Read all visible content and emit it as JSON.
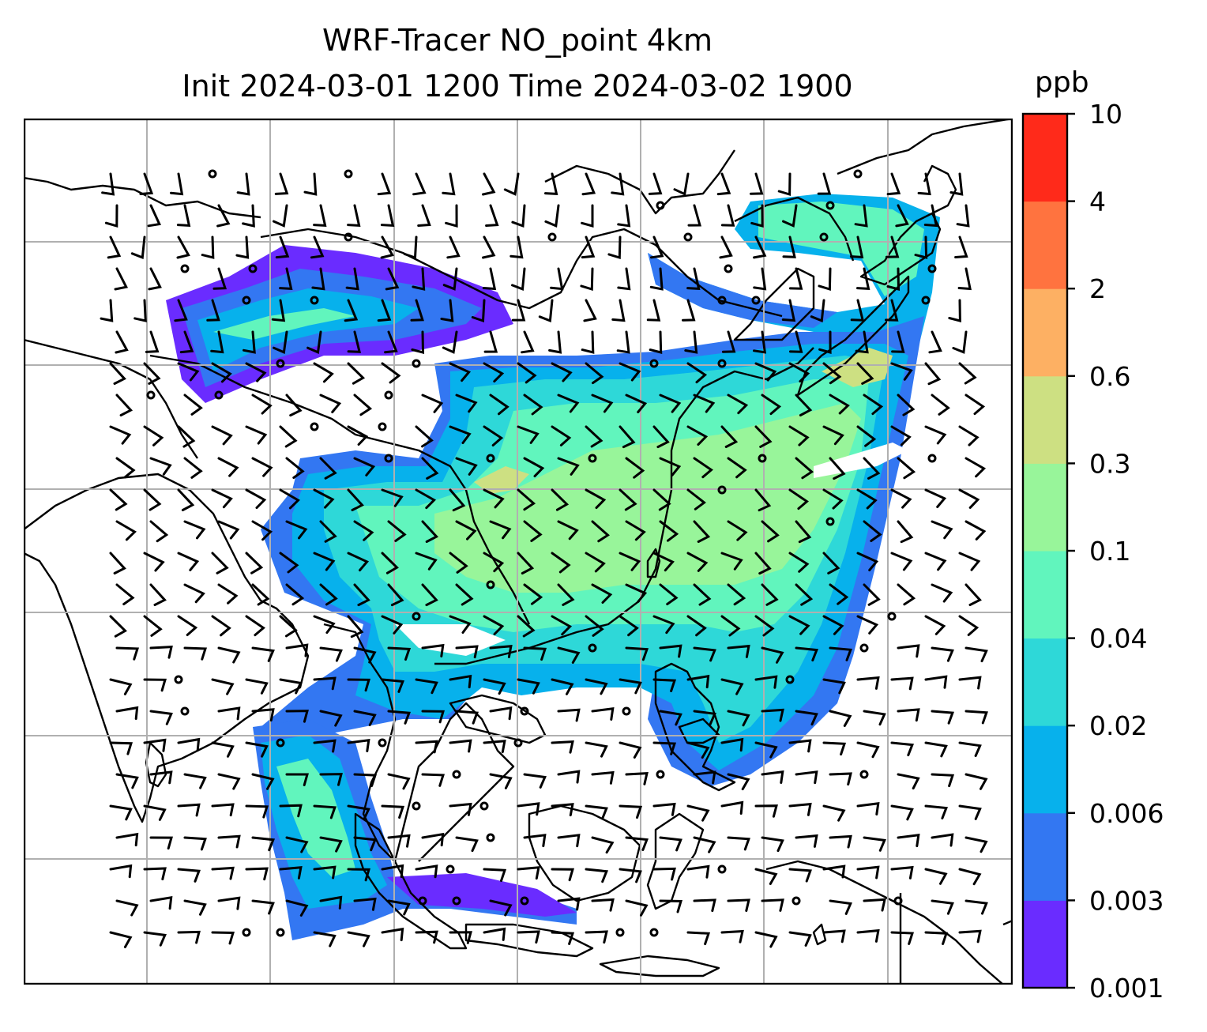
{
  "title": {
    "line1": "WRF-Tracer NO_point 4km",
    "line2": "Init 2024-03-01 1200 Time 2024-03-02 1900"
  },
  "colorbar": {
    "unit": "ppb",
    "ticks": [
      "0.001",
      "0.003",
      "0.006",
      "0.02",
      "0.04",
      "0.1",
      "0.3",
      "0.6",
      "2",
      "4",
      "10"
    ],
    "colors": [
      "#6a2cff",
      "#3377f2",
      "#07b1ec",
      "#2ed8d8",
      "#61f5bd",
      "#98f59a",
      "#cde082",
      "#fdb063",
      "#ff733f",
      "#ff2a1a"
    ]
  },
  "map": {
    "gridlines": true,
    "features": [
      "coastlines",
      "country-borders",
      "wind-barbs",
      "tracer-concentration-field"
    ]
  }
}
